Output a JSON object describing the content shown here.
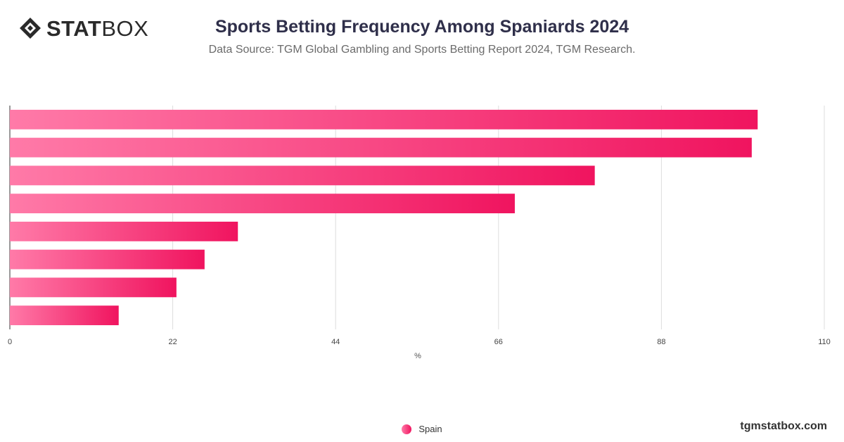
{
  "brand": {
    "logo_bold": "STAT",
    "logo_light": "BOX",
    "logo_icon": "diamond-logo-icon",
    "watermark": "tgmstatbox.com"
  },
  "header": {
    "title": "Sports Betting Frequency Among Spaniards 2024",
    "subtitle": "Data Source: TGM Global Gambling and Sports Betting Report 2024, TGM Research."
  },
  "colors": {
    "bar_start": "#ff7aa8",
    "bar_end": "#f0145f",
    "grid": "#dddddd",
    "axis": "#333333"
  },
  "chart_data": {
    "type": "bar",
    "orientation": "horizontal",
    "categories": [
      "",
      "",
      "",
      "",
      "",
      "",
      "",
      ""
    ],
    "series": [
      {
        "name": "Spain",
        "values": [
          101,
          100.2,
          79,
          68.2,
          30.8,
          26.3,
          22.5,
          14.7
        ]
      }
    ],
    "xlabel": "%",
    "ylabel": "",
    "xlim": [
      0,
      110
    ],
    "xticks": [
      0,
      22,
      44,
      66,
      88,
      110
    ],
    "grid": true,
    "legend": "bottom-center"
  }
}
